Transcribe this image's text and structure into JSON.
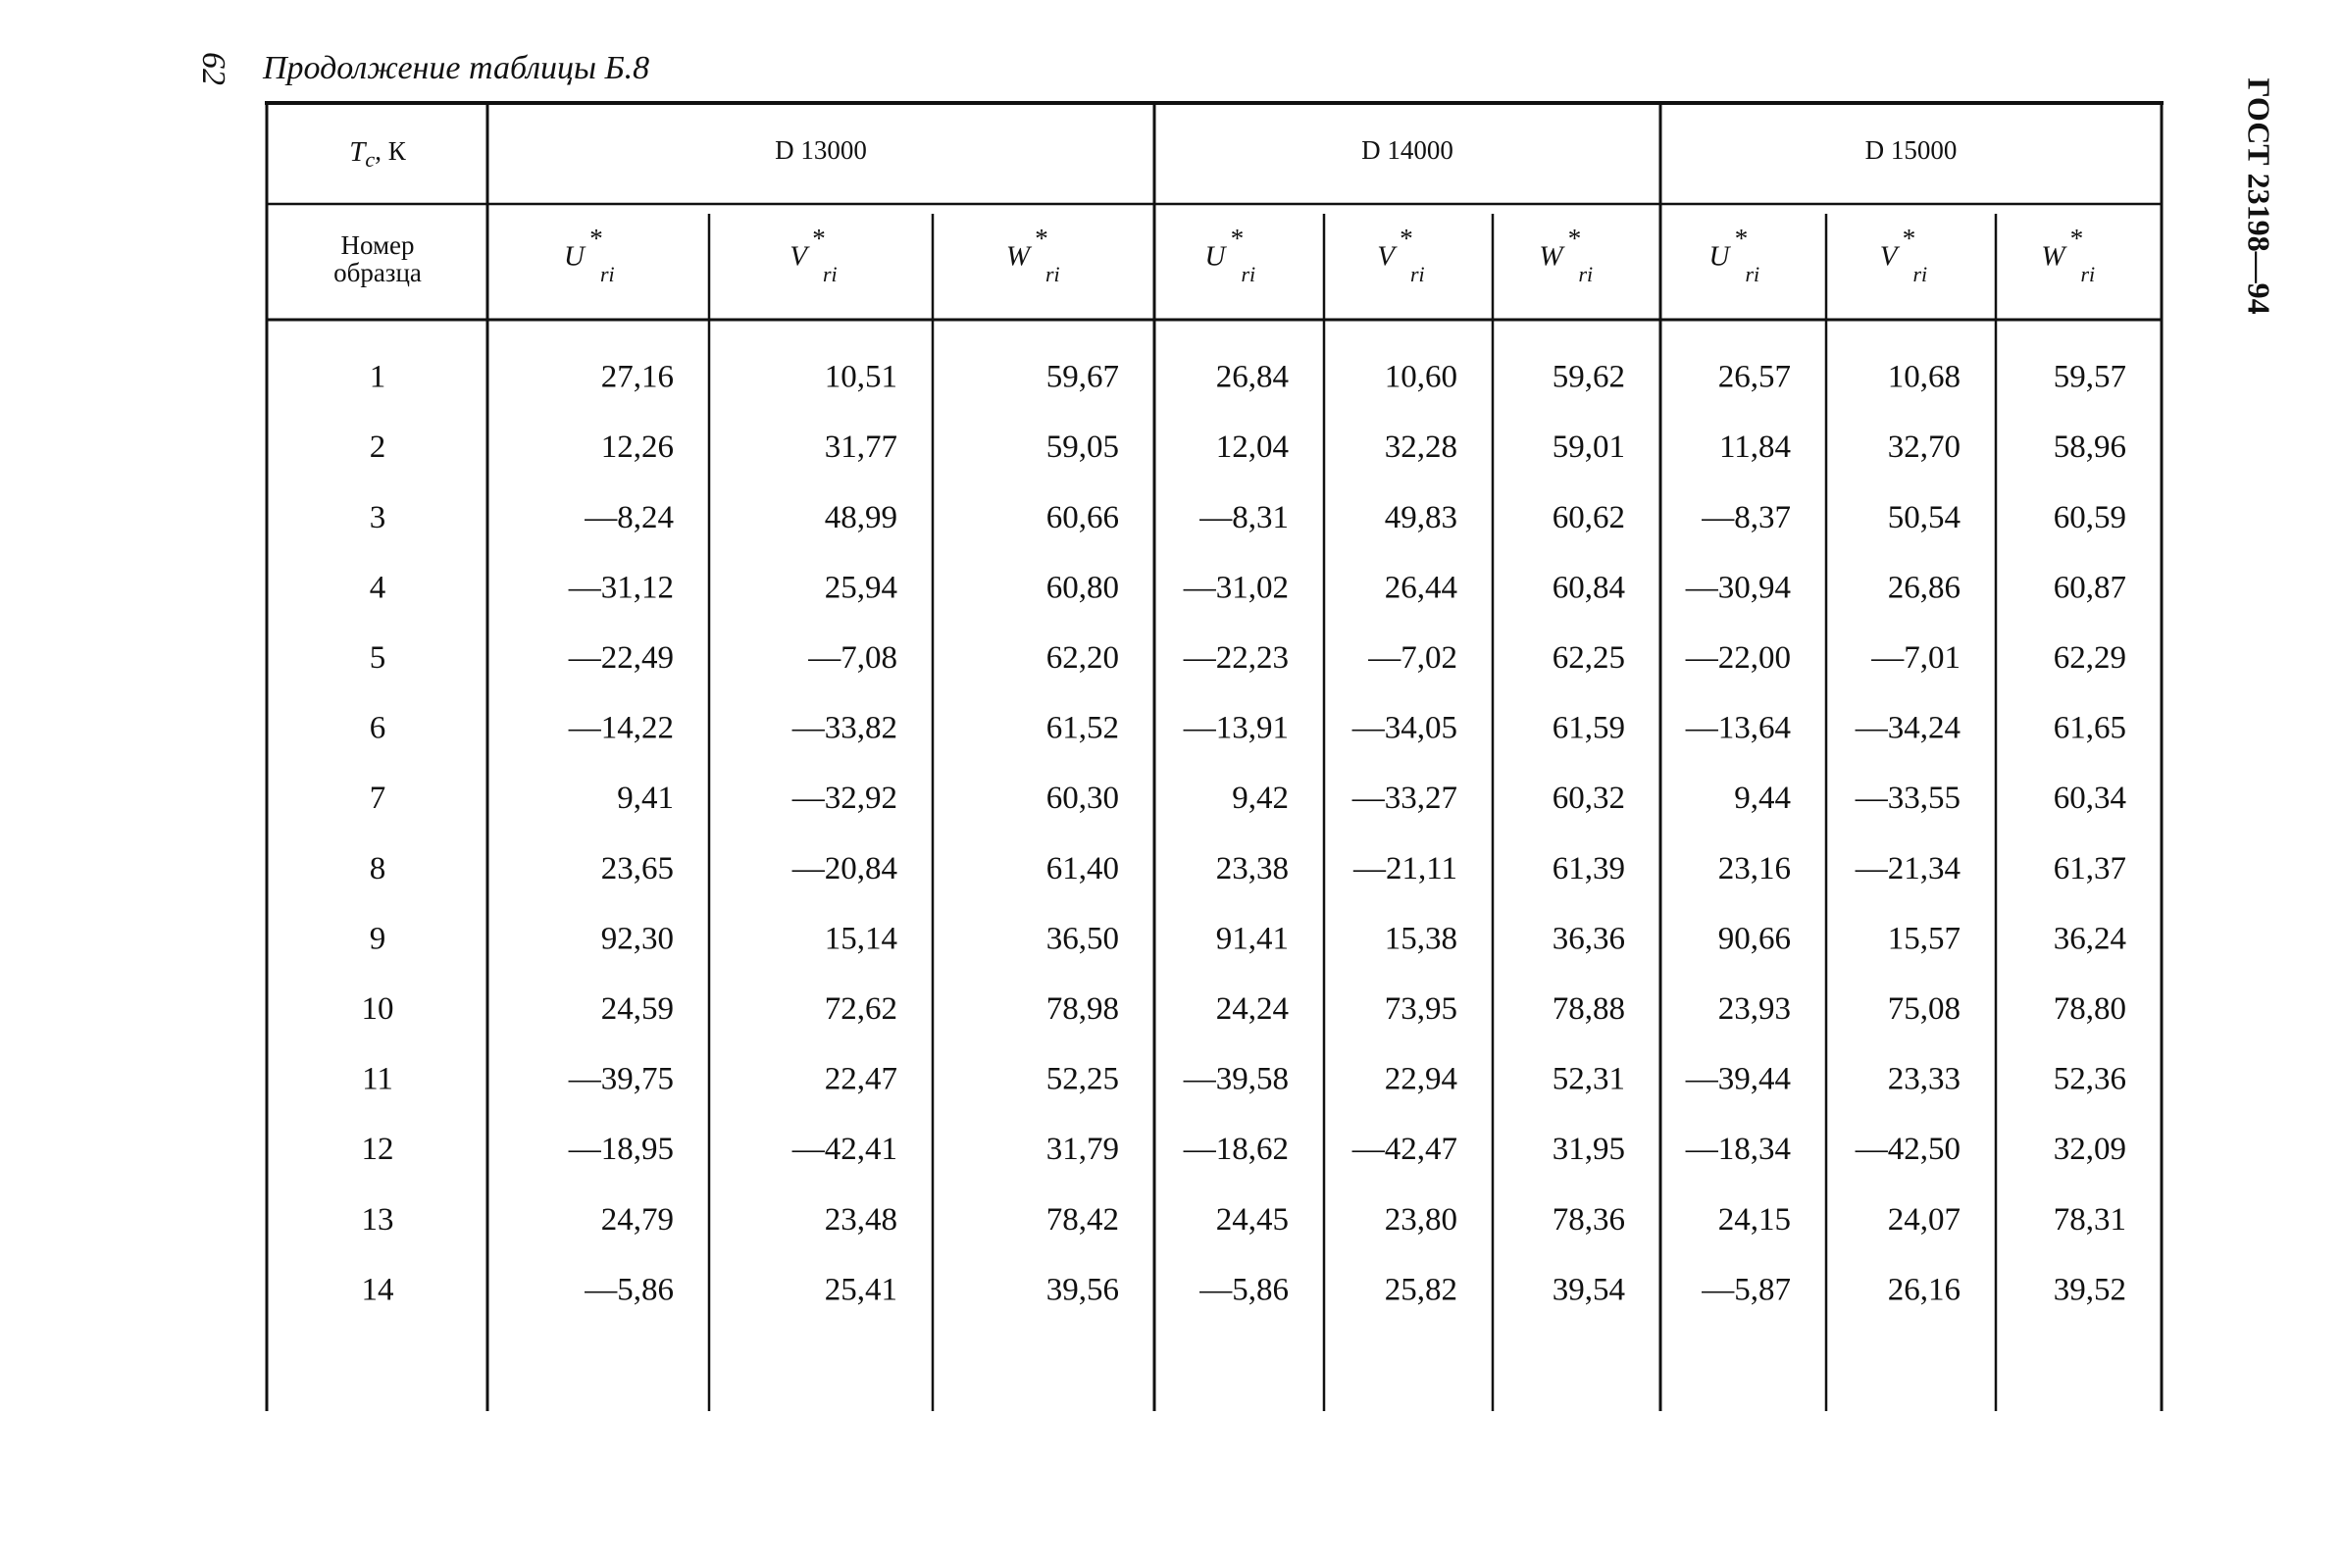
{
  "page_number": "62",
  "title": "Продолжение таблицы Б.8",
  "standard": "ГОСТ 23198—94",
  "table": {
    "corner_top": {
      "symbol": "T",
      "subscript": "с",
      "unit": ", К"
    },
    "corner_bottom": [
      "Номер",
      "образца"
    ],
    "groups": [
      "D 13000",
      "D 14000",
      "D 15000"
    ],
    "columns": [
      {
        "symbol": "U",
        "sup": "*",
        "sub": "ri"
      },
      {
        "symbol": "V",
        "sup": "*",
        "sub": "ri"
      },
      {
        "symbol": "W",
        "sup": "*",
        "sub": "ri"
      }
    ],
    "rows": [
      [
        "1",
        "27,16",
        "10,51",
        "59,67",
        "26,84",
        "10,60",
        "59,62",
        "26,57",
        "10,68",
        "59,57"
      ],
      [
        "2",
        "12,26",
        "31,77",
        "59,05",
        "12,04",
        "32,28",
        "59,01",
        "11,84",
        "32,70",
        "58,96"
      ],
      [
        "3",
        "—8,24",
        "48,99",
        "60,66",
        "—8,31",
        "49,83",
        "60,62",
        "—8,37",
        "50,54",
        "60,59"
      ],
      [
        "4",
        "—31,12",
        "25,94",
        "60,80",
        "—31,02",
        "26,44",
        "60,84",
        "—30,94",
        "26,86",
        "60,87"
      ],
      [
        "5",
        "—22,49",
        "—7,08",
        "62,20",
        "—22,23",
        "—7,02",
        "62,25",
        "—22,00",
        "—7,01",
        "62,29"
      ],
      [
        "6",
        "—14,22",
        "—33,82",
        "61,52",
        "—13,91",
        "—34,05",
        "61,59",
        "—13,64",
        "—34,24",
        "61,65"
      ],
      [
        "7",
        "9,41",
        "—32,92",
        "60,30",
        "9,42",
        "—33,27",
        "60,32",
        "9,44",
        "—33,55",
        "60,34"
      ],
      [
        "8",
        "23,65",
        "—20,84",
        "61,40",
        "23,38",
        "—21,11",
        "61,39",
        "23,16",
        "—21,34",
        "61,37"
      ],
      [
        "9",
        "92,30",
        "15,14",
        "36,50",
        "91,41",
        "15,38",
        "36,36",
        "90,66",
        "15,57",
        "36,24"
      ],
      [
        "10",
        "24,59",
        "72,62",
        "78,98",
        "24,24",
        "73,95",
        "78,88",
        "23,93",
        "75,08",
        "78,80"
      ],
      [
        "11",
        "—39,75",
        "22,47",
        "52,25",
        "—39,58",
        "22,94",
        "52,31",
        "—39,44",
        "23,33",
        "52,36"
      ],
      [
        "12",
        "—18,95",
        "—42,41",
        "31,79",
        "—18,62",
        "—42,47",
        "31,95",
        "—18,34",
        "—42,50",
        "32,09"
      ],
      [
        "13",
        "24,79",
        "23,48",
        "78,42",
        "24,45",
        "23,80",
        "78,36",
        "24,15",
        "24,07",
        "78,31"
      ],
      [
        "14",
        "—5,86",
        "25,41",
        "39,56",
        "—5,86",
        "25,82",
        "39,54",
        "—5,87",
        "26,16",
        "39,52"
      ]
    ]
  }
}
